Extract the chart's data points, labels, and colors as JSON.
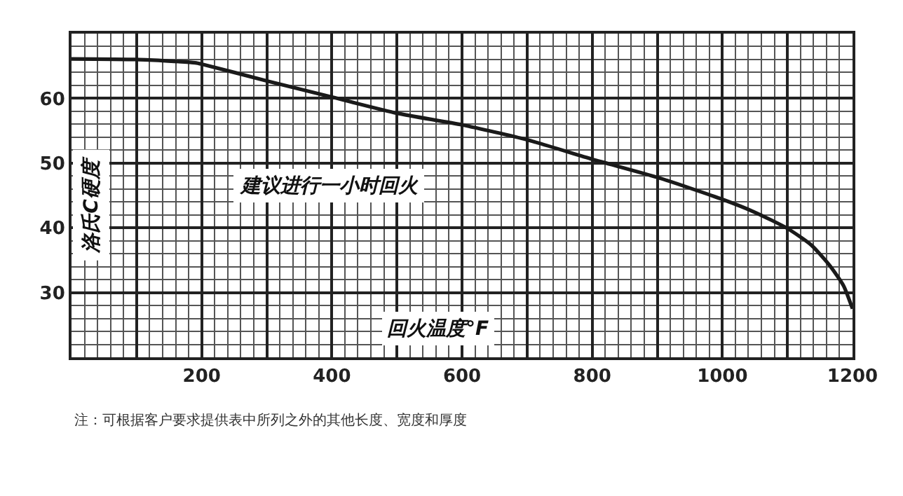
{
  "chart_data": {
    "type": "line",
    "xlabel": "回火温度°F",
    "ylabel": "洛氏C硬度",
    "annotations": [
      "建议进行一小时回火",
      "注：可根据客户要求提供表中所列之外的其他长度、宽度和厚度"
    ],
    "x": [
      0,
      100,
      190,
      200,
      300,
      400,
      500,
      600,
      700,
      800,
      900,
      1000,
      1050,
      1100,
      1136,
      1164,
      1186,
      1200
    ],
    "series": [
      {
        "color": "#1a1a1a",
        "values": [
          66.1,
          66.0,
          65.5,
          65.3,
          62.7,
          60.2,
          57.7,
          55.9,
          53.6,
          50.6,
          47.8,
          44.4,
          42.4,
          39.9,
          37.4,
          34.3,
          31.1,
          27.5
        ]
      }
    ],
    "xlim": [
      0,
      1200
    ],
    "ylim": [
      20,
      70
    ],
    "xticks": [
      {
        "value": 100,
        "label": null
      },
      200,
      {
        "value": 300,
        "label": null
      },
      400,
      {
        "value": 500,
        "label": null
      },
      600,
      {
        "value": 700,
        "label": null
      },
      800,
      {
        "value": 900,
        "label": null
      },
      1000,
      {
        "value": 1100,
        "label": null
      },
      1200
    ],
    "yticks": [
      {
        "value": 20,
        "label": null
      },
      30,
      40,
      50,
      60,
      {
        "value": 70,
        "label": null
      }
    ],
    "grid": true,
    "marker": "none",
    "line_style": "solid"
  }
}
